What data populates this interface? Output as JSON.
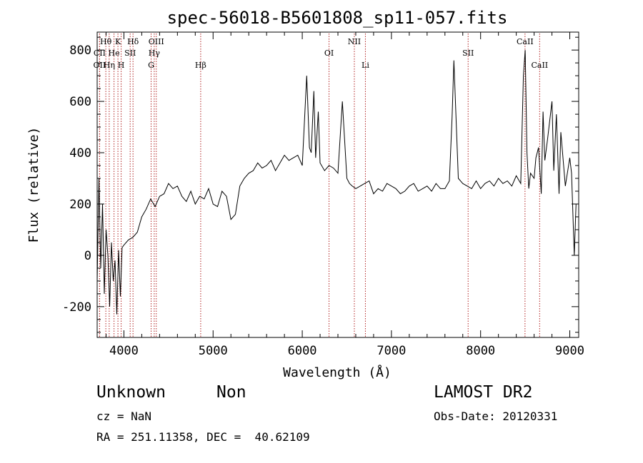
{
  "chart_data": {
    "type": "line",
    "title": "spec-56018-B5601808_sp11-057.fits",
    "xlabel": "Wavelength (Å)",
    "ylabel": "Flux (relative)",
    "xlim": [
      3700,
      9100
    ],
    "ylim": [
      -320,
      870
    ],
    "xticks": [
      4000,
      5000,
      6000,
      7000,
      8000,
      9000
    ],
    "yticks": [
      -200,
      0,
      200,
      400,
      600,
      800
    ],
    "grid": false,
    "series": [
      {
        "x": [
          3700,
          3720,
          3740,
          3760,
          3780,
          3800,
          3820,
          3840,
          3860,
          3880,
          3900,
          3920,
          3940,
          3960,
          3980,
          4000,
          4050,
          4100,
          4150,
          4200,
          4250,
          4300,
          4350,
          4400,
          4450,
          4500,
          4550,
          4600,
          4650,
          4700,
          4750,
          4800,
          4850,
          4900,
          4950,
          5000,
          5050,
          5100,
          5150,
          5200,
          5250,
          5300,
          5350,
          5400,
          5450,
          5500,
          5550,
          5600,
          5650,
          5700,
          5750,
          5800,
          5850,
          5900,
          5950,
          6000,
          6030,
          6050,
          6080,
          6100,
          6130,
          6150,
          6180,
          6200,
          6250,
          6300,
          6350,
          6400,
          6450,
          6500,
          6530,
          6560,
          6600,
          6650,
          6700,
          6750,
          6800,
          6850,
          6900,
          6950,
          7000,
          7050,
          7100,
          7150,
          7200,
          7250,
          7300,
          7350,
          7400,
          7450,
          7500,
          7550,
          7600,
          7650,
          7680,
          7700,
          7750,
          7800,
          7850,
          7900,
          7950,
          8000,
          8050,
          8100,
          8150,
          8200,
          8250,
          8300,
          8350,
          8400,
          8450,
          8480,
          8500,
          8520,
          8540,
          8560,
          8600,
          8620,
          8650,
          8680,
          8700,
          8720,
          8750,
          8800,
          8820,
          8850,
          8880,
          8900,
          8950,
          9000,
          9020,
          9050,
          9070
        ],
        "y": [
          -100,
          300,
          -50,
          200,
          -150,
          100,
          0,
          -200,
          50,
          -100,
          -20,
          -230,
          20,
          -160,
          30,
          40,
          60,
          70,
          90,
          150,
          180,
          220,
          190,
          230,
          240,
          280,
          260,
          270,
          230,
          210,
          250,
          200,
          230,
          220,
          260,
          200,
          190,
          250,
          230,
          140,
          160,
          270,
          300,
          320,
          330,
          360,
          340,
          350,
          370,
          330,
          360,
          390,
          370,
          380,
          390,
          350,
          560,
          700,
          420,
          400,
          640,
          380,
          560,
          360,
          330,
          350,
          340,
          320,
          600,
          300,
          280,
          270,
          260,
          270,
          280,
          290,
          240,
          260,
          250,
          280,
          270,
          260,
          240,
          250,
          270,
          280,
          250,
          260,
          270,
          250,
          280,
          260,
          260,
          290,
          540,
          760,
          300,
          280,
          270,
          260,
          290,
          260,
          280,
          290,
          270,
          300,
          280,
          290,
          270,
          310,
          280,
          700,
          800,
          400,
          260,
          320,
          300,
          380,
          420,
          240,
          560,
          370,
          450,
          600,
          330,
          550,
          240,
          480,
          270,
          380,
          320,
          0,
          200
        ]
      }
    ],
    "spectral_lines": [
      {
        "label": "Hθ",
        "x": 3797,
        "row": 1
      },
      {
        "label": "CII",
        "x": 3727,
        "row": 2
      },
      {
        "label": "OII",
        "x": 3727,
        "row": 3
      },
      {
        "label": "He",
        "x": 3889,
        "row": 2
      },
      {
        "label": "Hη",
        "x": 3835,
        "row": 3
      },
      {
        "label": "K",
        "x": 3933,
        "row": 1
      },
      {
        "label": "H",
        "x": 3969,
        "row": 3
      },
      {
        "label": "SII",
        "x": 4070,
        "row": 2
      },
      {
        "label": "Hδ",
        "x": 4102,
        "row": 1
      },
      {
        "label": "OIII",
        "x": 4363,
        "row": 1
      },
      {
        "label": "Hγ",
        "x": 4340,
        "row": 2
      },
      {
        "label": "G",
        "x": 4305,
        "row": 3
      },
      {
        "label": "Hβ",
        "x": 4861,
        "row": 3
      },
      {
        "label": "OI",
        "x": 6300,
        "row": 2
      },
      {
        "label": "NII",
        "x": 6584,
        "row": 1
      },
      {
        "label": "Li",
        "x": 6708,
        "row": 3
      },
      {
        "label": "SII",
        "x": 7860,
        "row": 2
      },
      {
        "label": "CaII",
        "x": 8498,
        "row": 1
      },
      {
        "label": "CaII",
        "x": 8662,
        "row": 3
      }
    ]
  },
  "info": {
    "object_class": "Unknown",
    "object_subclass": "Non",
    "cz": "cz = NaN",
    "radec": "RA = 251.11358, DEC =  40.62109",
    "survey": "LAMOST DR2",
    "obs_date": "Obs-Date: 20120331"
  },
  "colors": {
    "spectrum": "#000000",
    "line_marker": "#b22222"
  }
}
